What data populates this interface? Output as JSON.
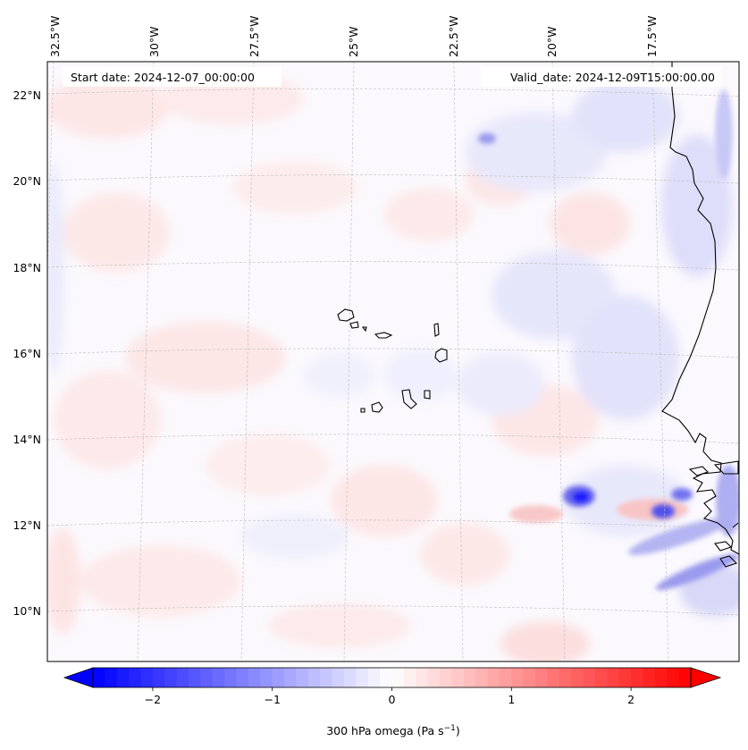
{
  "map": {
    "start_date_text": "Start date: 2024-12-07_00:00:00",
    "valid_date_text": "Valid_date: 2024-12-09T15:00:00.00",
    "top_lon_labels": [
      "32.5°W",
      "30°W",
      "27.5°W",
      "25°W",
      "22.5°W",
      "20°W",
      "17.5°W"
    ],
    "left_lat_labels": [
      "22°N",
      "20°N",
      "18°N",
      "16°N",
      "14°N",
      "12°N",
      "10°N"
    ],
    "gridlines": "dashed",
    "coastline_color": "#000000",
    "field": "300 hPa omega",
    "features": [
      {
        "name": "cape-verde-islands",
        "type": "coastline"
      },
      {
        "name": "west-africa-coast",
        "type": "coastline"
      },
      {
        "name": "strong-ascent-cell",
        "sign": "negative"
      },
      {
        "name": "weak-ascent-cell",
        "sign": "negative"
      }
    ]
  },
  "colorbar": {
    "ticks": [
      "−2",
      "−1",
      "0",
      "1",
      "2"
    ],
    "tick_values": [
      -2,
      -1,
      0,
      1,
      2
    ],
    "range": [
      -2.5,
      2.5
    ],
    "extend": "both",
    "colormap": "bwr",
    "label_main": "300 hPa omega (Pa s",
    "label_exp": "−1",
    "label_end": ")",
    "colors": {
      "min": "#0000ff",
      "mid": "#ffffff",
      "max": "#ff0000"
    }
  }
}
